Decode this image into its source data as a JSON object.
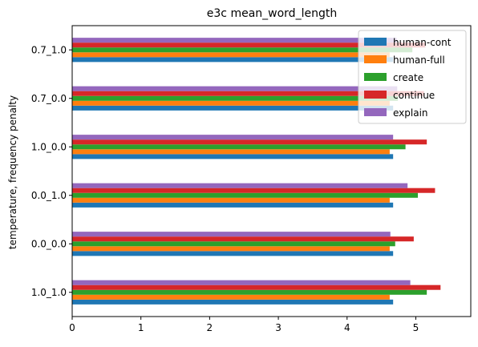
{
  "chart_data": {
    "type": "bar",
    "orientation": "horizontal",
    "title": "e3c mean_word_length",
    "xlabel": "",
    "ylabel": "temperature, frequency penalty",
    "categories": [
      "1.0_1.0",
      "0.0_0.0",
      "0.0_1.0",
      "1.0_0.0",
      "0.7_0.0",
      "0.7_1.0"
    ],
    "series": [
      {
        "name": "human-cont",
        "color": "#1f77b4",
        "values": [
          4.67,
          4.67,
          4.67,
          4.67,
          4.67,
          4.67
        ]
      },
      {
        "name": "human-full",
        "color": "#ff7f0e",
        "values": [
          4.62,
          4.62,
          4.62,
          4.62,
          4.62,
          4.62
        ]
      },
      {
        "name": "create",
        "color": "#2ca02c",
        "values": [
          5.16,
          4.7,
          5.03,
          4.85,
          4.74,
          4.95
        ]
      },
      {
        "name": "continue",
        "color": "#d62728",
        "values": [
          5.36,
          4.97,
          5.28,
          5.16,
          5.12,
          5.14
        ]
      },
      {
        "name": "explain",
        "color": "#9467bd",
        "values": [
          4.92,
          4.63,
          4.88,
          4.67,
          4.73,
          4.72
        ]
      }
    ],
    "xlim": [
      0,
      5.8
    ],
    "xticks": [
      0,
      1,
      2,
      3,
      4,
      5
    ],
    "grid": false,
    "legend_position": "upper right"
  }
}
